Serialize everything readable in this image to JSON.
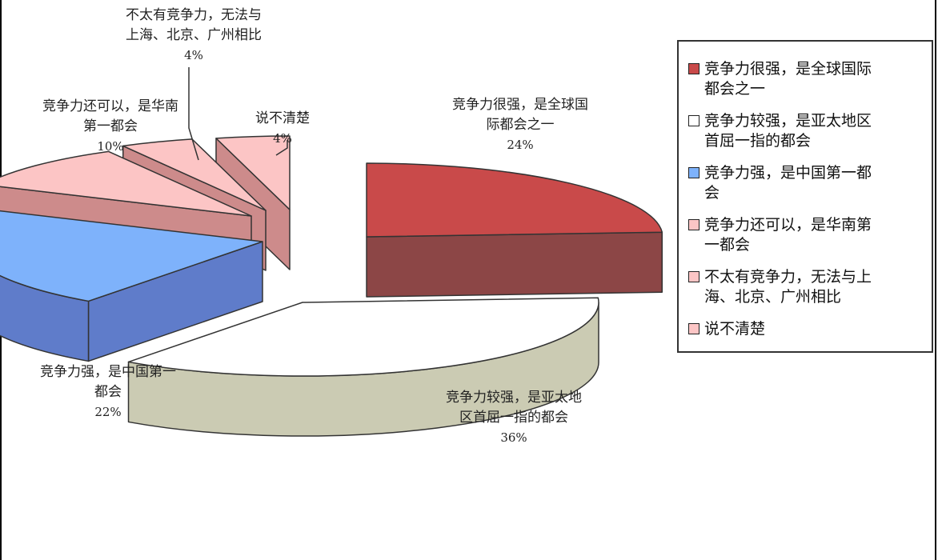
{
  "chart_data": {
    "type": "pie",
    "style": "3d-exploded",
    "title": "",
    "slices": [
      {
        "label": "竞争力很强，是全球国际都会之一",
        "chart_label": [
          "竞争力很强，是全球国",
          "际都会之一"
        ],
        "value": 24,
        "pct_text": "24%",
        "color": "#c94a4a",
        "side": "#8c4646"
      },
      {
        "label": "竞争力较强，是亚太地区首屈一指的都会",
        "chart_label": [
          "竞争力较强，是亚太地",
          "区首屈一指的都会"
        ],
        "value": 36,
        "pct_text": "36%",
        "color": "#ffffff",
        "side": "#cbcbb3"
      },
      {
        "label": "竞争力强，是中国第一都会",
        "chart_label": [
          "竞争力强，是中国第一",
          "都会"
        ],
        "value": 22,
        "pct_text": "22%",
        "color": "#7eb2fb",
        "side": "#5f7cca"
      },
      {
        "label": "竞争力还可以，是华南第一都会",
        "chart_label": [
          "竞争力还可以，是华南",
          "第一都会"
        ],
        "value": 10,
        "pct_text": "10%",
        "color": "#fcc5c5",
        "side": "#cd8b8b"
      },
      {
        "label": "不太有竞争力，无法与上海、北京、广州相比",
        "chart_label": [
          "不太有竞争力，无法与",
          "上海、北京、广州相比"
        ],
        "value": 4,
        "pct_text": "4%",
        "color": "#fcc5c5",
        "side": "#cd8b8b"
      },
      {
        "label": "说不清楚",
        "chart_label": [
          "说不清楚"
        ],
        "value": 4,
        "pct_text": "4%",
        "color": "#fcc5c5",
        "side": "#cd8b8b"
      }
    ],
    "legend": {
      "position": "right",
      "items": [
        {
          "lines": [
            "竞争力很强，是全球国际",
            "都会之一"
          ]
        },
        {
          "lines": [
            "竞争力较强，是亚太地区",
            "首屈一指的都会"
          ]
        },
        {
          "lines": [
            "竞争力强，是中国第一都",
            "会"
          ]
        },
        {
          "lines": [
            "竞争力还可以，是华南第",
            "一都会"
          ]
        },
        {
          "lines": [
            "不太有竞争力，无法与上",
            "海、北京、广州相比"
          ]
        },
        {
          "lines": [
            "说不清楚"
          ]
        }
      ]
    }
  }
}
